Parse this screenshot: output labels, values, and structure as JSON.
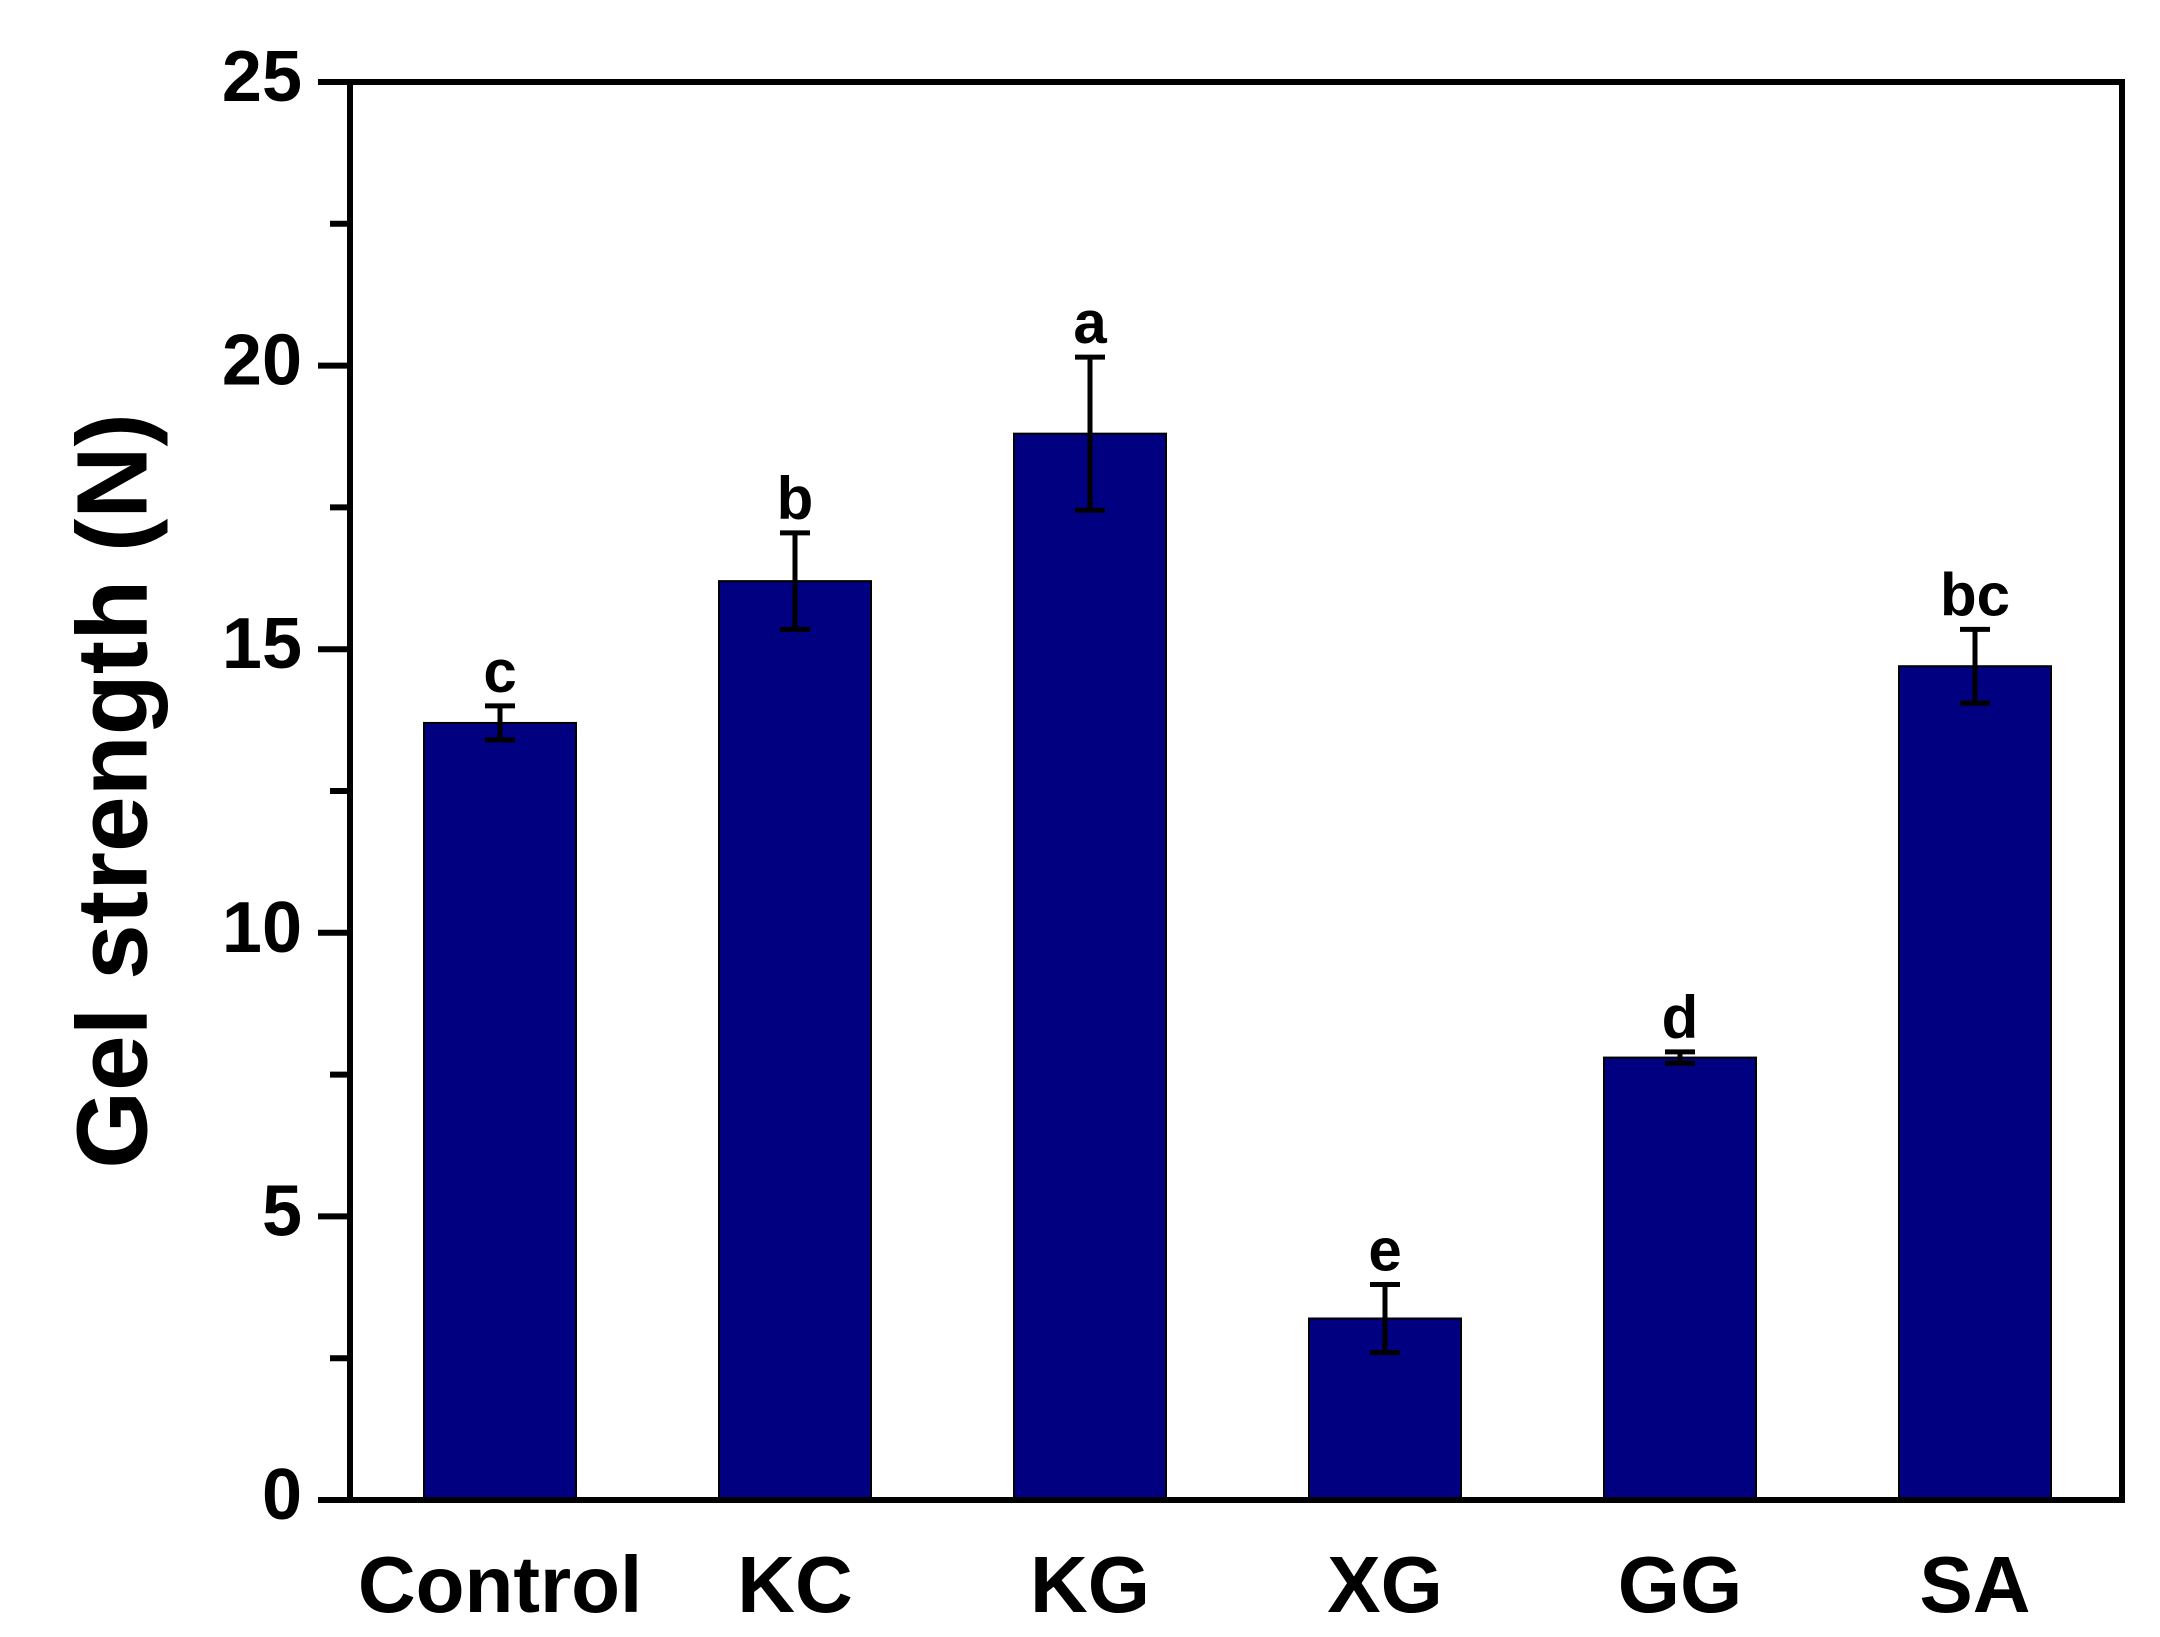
{
  "chart_data": {
    "type": "bar",
    "title": "",
    "xlabel": "",
    "ylabel": "Gel strength (N)",
    "ylim": [
      0,
      25
    ],
    "yticks": [
      0,
      5,
      10,
      15,
      20,
      25
    ],
    "y_minor_step": 2.5,
    "grid": false,
    "legend": "none",
    "bar_color": "#000080",
    "categories": [
      "Control",
      "KC",
      "KG",
      "XG",
      "GG",
      "SA"
    ],
    "values": [
      13.7,
      16.2,
      18.8,
      3.2,
      7.8,
      14.7
    ],
    "errors": [
      0.3,
      0.85,
      1.35,
      0.6,
      0.1,
      0.65
    ],
    "significance": [
      "c",
      "b",
      "a",
      "e",
      "d",
      "bc"
    ]
  }
}
